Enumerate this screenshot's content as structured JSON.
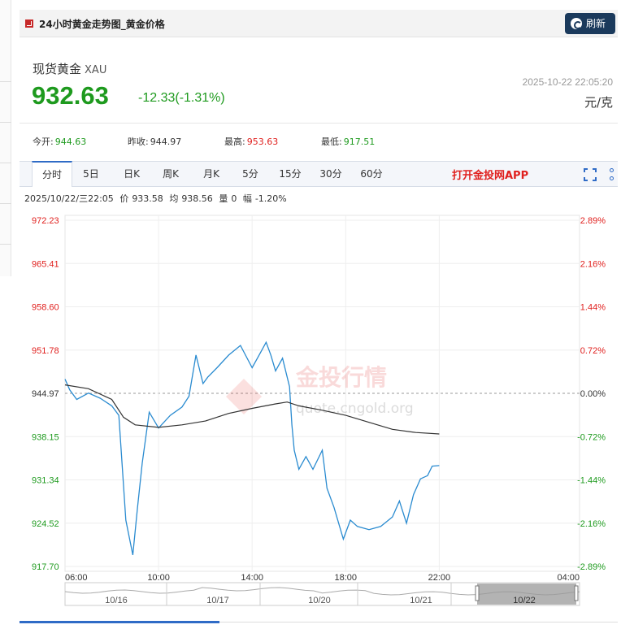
{
  "header": {
    "title": "24小时黄金走势图_黄金价格",
    "refresh_label": "刷新"
  },
  "quote": {
    "name": "现货黄金",
    "code": "XAU",
    "price": "932.63",
    "change": "-12.33(-1.31%)",
    "timestamp": "2025-10-22 22:05:20",
    "unit": "元/克"
  },
  "stats": [
    {
      "label": "今开:",
      "value": "944.63",
      "color": "green"
    },
    {
      "label": "昨收:",
      "value": "944.97",
      "color": "neutral"
    },
    {
      "label": "最高:",
      "value": "953.63",
      "color": "red"
    },
    {
      "label": "最低:",
      "value": "917.51",
      "color": "green"
    }
  ],
  "tabs": [
    "分时",
    "5日",
    "日K",
    "周K",
    "月K",
    "5分",
    "15分",
    "30分",
    "60分"
  ],
  "active_tab": "分时",
  "app_link": "打开金投网APP",
  "status": {
    "datetime": "2025/10/22/三22:05",
    "price_label": "价",
    "price": "933.58",
    "avg_label": "均",
    "avg": "938.56",
    "vol_label": "量",
    "vol": "0",
    "amp_label": "幅",
    "amp": "-1.20%"
  },
  "watermark": {
    "main": "金投行情",
    "sub": "quote.cngold.org"
  },
  "colors": {
    "up": "#e0201e",
    "down": "#1e9a1e",
    "price_line": "#2a8bd0",
    "avg_line": "#333333",
    "accent": "#2f6bc6"
  },
  "chart_data": {
    "type": "line",
    "ylim": [
      917.7,
      972.23
    ],
    "prev_close": 944.97,
    "y_ticks": [
      "972.23",
      "965.41",
      "958.60",
      "951.78",
      "944.97",
      "938.15",
      "931.34",
      "924.52",
      "917.70"
    ],
    "pct_ticks": [
      "2.89%",
      "2.16%",
      "1.44%",
      "0.72%",
      "0.00%",
      "-0.72%",
      "-1.44%",
      "-2.16%",
      "-2.89%"
    ],
    "x_ticks": [
      "06:00",
      "10:00",
      "14:00",
      "18:00",
      "22:00",
      "04:00"
    ],
    "x_range_hours": [
      6,
      28
    ],
    "series": [
      {
        "style": "price",
        "x": [
          6.0,
          6.2,
          6.5,
          7.0,
          7.5,
          8.0,
          8.3,
          8.6,
          8.9,
          9.1,
          9.3,
          9.6,
          10.0,
          10.5,
          11.0,
          11.3,
          11.6,
          11.9,
          12.1,
          12.5,
          13.0,
          13.5,
          14.0,
          14.3,
          14.6,
          14.8,
          15.0,
          15.3,
          15.6,
          15.7,
          15.8,
          16.0,
          16.3,
          16.6,
          17.0,
          17.2,
          17.5,
          17.9,
          18.2,
          18.5,
          19.0,
          19.5,
          20.0,
          20.3,
          20.6,
          20.9,
          21.2,
          21.5,
          21.7,
          22.0
        ],
        "y": [
          947.2,
          945.5,
          944.0,
          945.0,
          944.2,
          943.0,
          941.5,
          925.0,
          919.5,
          927.0,
          934.0,
          942.0,
          939.5,
          941.5,
          942.8,
          944.5,
          951.0,
          946.5,
          947.5,
          949.0,
          951.0,
          952.5,
          949.0,
          951.0,
          953.0,
          951.0,
          948.5,
          950.5,
          946.0,
          940.0,
          936.0,
          933.0,
          935.0,
          933.0,
          936.0,
          930.0,
          927.0,
          922.0,
          925.0,
          924.0,
          923.5,
          924.0,
          925.5,
          928.0,
          924.5,
          929.0,
          931.5,
          932.0,
          933.5,
          933.58
        ]
      },
      {
        "style": "average",
        "x": [
          6.0,
          7.0,
          8.0,
          8.5,
          9.0,
          10.0,
          11.0,
          12.0,
          13.0,
          14.0,
          15.0,
          15.5,
          16.0,
          17.0,
          18.0,
          19.0,
          20.0,
          21.0,
          22.0
        ],
        "y": [
          946.3,
          945.7,
          944.0,
          941.2,
          940.0,
          939.6,
          940.0,
          940.6,
          941.8,
          942.6,
          943.3,
          943.6,
          943.0,
          942.3,
          941.5,
          940.4,
          939.3,
          938.8,
          938.56
        ]
      }
    ],
    "navigator": {
      "labels": [
        "10/16",
        "10/17",
        "10/20",
        "10/21",
        "10/22"
      ],
      "selected": "10/22"
    }
  }
}
